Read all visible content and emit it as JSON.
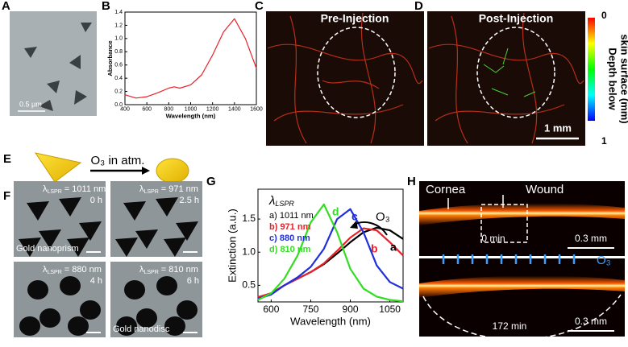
{
  "chart_data": [
    {
      "type": "line",
      "x_label": "Wavelength (nm)",
      "y_label": "Absorbance",
      "x": [
        400,
        500,
        600,
        700,
        800,
        850,
        900,
        1000,
        1100,
        1200,
        1300,
        1400,
        1500,
        1600
      ],
      "values": [
        0.15,
        0.1,
        0.12,
        0.18,
        0.25,
        0.27,
        0.25,
        0.3,
        0.45,
        0.75,
        1.1,
        1.3,
        1.0,
        0.55
      ],
      "color": "#e8202a",
      "xlim": [
        400,
        1600
      ],
      "ylim": [
        0,
        1.4
      ],
      "xticks": [
        400,
        600,
        800,
        1000,
        1200,
        1400,
        1600
      ],
      "yticks": [
        {
          "value": 0,
          "label": "0.0"
        },
        0.2,
        0.4,
        0.6,
        0.8,
        {
          "value": 1,
          "label": "1.0"
        },
        1.2,
        1.4
      ]
    },
    {
      "type": "line",
      "x_label": "Wavelength (nm)",
      "y_label": "Extinction (a.u.)",
      "legend_title": [
        "λ",
        "LSPR"
      ],
      "x": [
        550,
        600,
        650,
        700,
        750,
        800,
        850,
        900,
        950,
        1000,
        1050,
        1100
      ],
      "series": [
        {
          "name": "a) 1011 nm",
          "color": "#000000",
          "values": [
            0.32,
            0.38,
            0.5,
            0.6,
            0.7,
            0.82,
            0.98,
            1.15,
            1.3,
            1.37,
            1.33,
            1.2
          ]
        },
        {
          "name": "b) 971 nm",
          "color": "#e8202a",
          "values": [
            0.32,
            0.38,
            0.5,
            0.6,
            0.7,
            0.83,
            1.02,
            1.22,
            1.36,
            1.33,
            1.15,
            0.95
          ]
        },
        {
          "name": "c) 880 nm",
          "color": "#1f2fe0",
          "values": [
            0.3,
            0.36,
            0.5,
            0.62,
            0.78,
            1.05,
            1.5,
            1.65,
            1.3,
            0.8,
            0.55,
            0.45
          ]
        },
        {
          "name": "d) 810 nm",
          "color": "#33dd22",
          "values": [
            0.28,
            0.38,
            0.6,
            0.95,
            1.45,
            1.72,
            1.3,
            0.75,
            0.45,
            0.33,
            0.28,
            0.26
          ]
        }
      ],
      "annotations": [
        {
          "text": "a",
          "color": "#000000"
        },
        {
          "text": "b",
          "color": "#e8202a"
        },
        {
          "text": "c",
          "color": "#1f2fe0"
        },
        {
          "text": "d",
          "color": "#33dd22"
        },
        {
          "text": "O₃",
          "color": "#000000"
        }
      ],
      "xlim": [
        550,
        1100
      ],
      "ylim": [
        0.25,
        1.95
      ],
      "xticks": [
        600,
        750,
        900,
        1050
      ],
      "yticks": [
        0.5,
        {
          "value": 1,
          "label": "1.0"
        },
        1.5
      ]
    }
  ],
  "panels": {
    "letters": [
      "A",
      "B",
      "C",
      "D",
      "E",
      "F",
      "G",
      "H"
    ],
    "a_scale": "0.5 μm",
    "c_title": "Pre-Injection",
    "d_title": "Post-Injection",
    "d_scale": "1 mm",
    "colorbar": {
      "top": "0",
      "bottom": "1",
      "label": [
        "Depth below",
        "skin surface (mm)"
      ]
    },
    "e_text": "O₃ in atm.",
    "f": [
      {
        "lambda": "λ",
        "sub": "LSPR",
        "value": "= 1011 nm",
        "time": "0 h",
        "name": "Gold nanoprism"
      },
      {
        "lambda": "λ",
        "sub": "LSPR",
        "value": "= 971 nm",
        "time": "2.5 h"
      },
      {
        "lambda": "λ",
        "sub": "LSPR",
        "value": "= 880 nm",
        "time": "4 h"
      },
      {
        "lambda": "λ",
        "sub": "LSPR",
        "value": "= 810 nm",
        "time": "6 h",
        "name": "Gold nanodisc"
      }
    ],
    "h_top": {
      "cornea": "Cornea",
      "wound": "Wound",
      "time": "0 min",
      "scale": "0.3 mm"
    },
    "h_bottom": {
      "time": "172 min",
      "scale": "0.3 mm",
      "ozone": "O₃"
    }
  }
}
